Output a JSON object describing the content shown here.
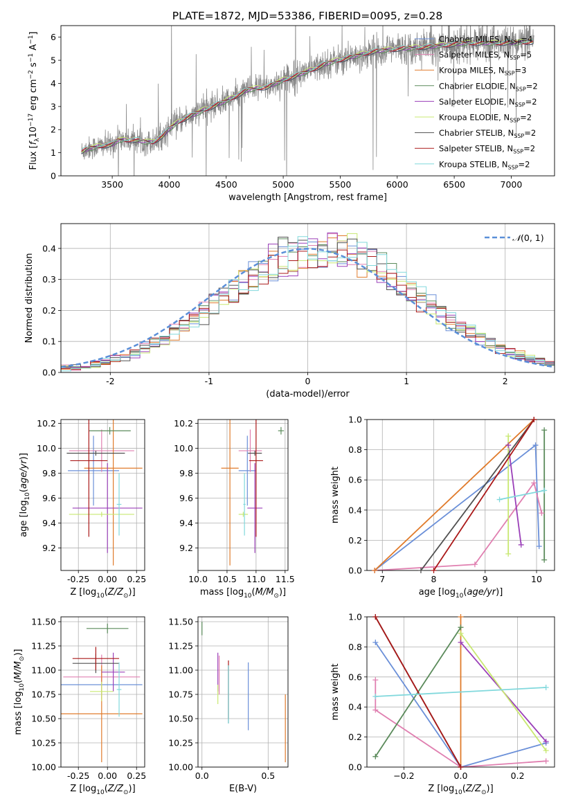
{
  "title": "PLATE=1872, MJD=53386, FIBERID=0095, z=0.28",
  "colors": {
    "chabrier_miles": "#6a8fd8",
    "salpeter_miles": "#e07fb0",
    "kroupa_miles": "#e07a2a",
    "chabrier_elodie": "#5a8a5a",
    "salpeter_elodie": "#9a3fb8",
    "kroupa_elodie": "#c8e870",
    "chabrier_stelib": "#505050",
    "salpeter_stelib": "#aa1818",
    "kroupa_stelib": "#80d8dc",
    "data": "#888888",
    "normal": "#5a8fd8"
  },
  "chart_data": [
    {
      "id": "spectrum",
      "type": "line",
      "xlabel": "wavelength [Angstrom, rest frame]",
      "xlim": [
        3050,
        7380
      ],
      "ylim": [
        0,
        6.5
      ],
      "xticks": [
        3500,
        4000,
        4500,
        5000,
        5500,
        6000,
        6500,
        7000
      ],
      "yticks": [
        0,
        1,
        2,
        3,
        4,
        5,
        6
      ],
      "legend_position": "right",
      "legend": [
        {
          "key": "chabrier_miles",
          "name": "Chabrier MILES",
          "n": "4"
        },
        {
          "key": "salpeter_miles",
          "name": "Salpeter MILES",
          "n": "5"
        },
        {
          "key": "kroupa_miles",
          "name": "Kroupa MILES",
          "n": "3"
        },
        {
          "key": "chabrier_elodie",
          "name": "Chabrier ELODIE",
          "n": "2"
        },
        {
          "key": "salpeter_elodie",
          "name": "Salpeter ELODIE",
          "n": "2"
        },
        {
          "key": "kroupa_elodie",
          "name": "Kroupa ELODIE",
          "n": "2"
        },
        {
          "key": "chabrier_stelib",
          "name": "Chabrier STELIB",
          "n": "2"
        },
        {
          "key": "salpeter_stelib",
          "name": "Salpeter STELIB",
          "n": "2"
        },
        {
          "key": "kroupa_stelib",
          "name": "Kroupa STELIB",
          "n": "2"
        }
      ],
      "data_range": [
        3230,
        7200
      ],
      "model_curve": {
        "x": [
          3230,
          3300,
          3400,
          3500,
          3550,
          3700,
          3850,
          3950,
          4000,
          4100,
          4300,
          4500,
          4700,
          4860,
          5000,
          5200,
          5400,
          5600,
          5800,
          6000,
          6300,
          6600,
          6900,
          7200
        ],
        "y": [
          1.05,
          1.2,
          1.3,
          1.35,
          1.55,
          1.55,
          1.45,
          1.75,
          2.05,
          2.4,
          2.85,
          3.25,
          3.75,
          3.85,
          4.15,
          4.5,
          4.9,
          5.15,
          5.4,
          5.5,
          5.6,
          5.75,
          5.75,
          5.8
        ]
      }
    },
    {
      "id": "residuals",
      "type": "histogram",
      "xlabel": "(data-model)/error",
      "ylabel": "Normed distribution",
      "xlim": [
        -2.5,
        2.5
      ],
      "ylim": [
        0,
        0.48
      ],
      "xticks": [
        -2,
        -1,
        0,
        1,
        2
      ],
      "yticks": [
        0.0,
        0.1,
        0.2,
        0.3,
        0.4
      ],
      "grid": true,
      "legend_position": "top-right",
      "bin_width": 0.1,
      "gaussian": {
        "mean": 0,
        "sigma": 1
      }
    },
    {
      "id": "age_vs_z",
      "type": "errorbar",
      "xlabel": "Z [log10(Z/Zsun)]",
      "ylabel": "age [log10(age/yr)]",
      "xlim": [
        -0.4,
        0.32
      ],
      "ylim": [
        9.02,
        10.23
      ],
      "xticks": [
        -0.25,
        0.0,
        0.25
      ],
      "yticks": [
        9.2,
        9.4,
        9.6,
        9.8,
        10.0,
        10.2
      ],
      "grid": true,
      "points": [
        {
          "key": "chabrier_miles",
          "x": -0.12,
          "xerr": 0.22,
          "y": 9.82,
          "yerr": 0.28
        },
        {
          "key": "salpeter_miles",
          "x": -0.05,
          "xerr": 0.28,
          "y": 9.98,
          "yerr": 0.17
        },
        {
          "key": "kroupa_miles",
          "x": 0.05,
          "xerr": 0.25,
          "y": 9.84,
          "yerr": 0.78
        },
        {
          "key": "chabrier_elodie",
          "x": 0.02,
          "xerr": 0.18,
          "y": 10.14,
          "yerr": 0.03
        },
        {
          "key": "salpeter_elodie",
          "x": 0.0,
          "xerr": 0.3,
          "y": 9.52,
          "yerr": 0.36
        },
        {
          "key": "kroupa_elodie",
          "x": -0.05,
          "xerr": 0.28,
          "y": 9.47,
          "yerr": 0.02
        },
        {
          "key": "chabrier_stelib",
          "x": -0.1,
          "xerr": 0.25,
          "y": 9.96,
          "yerr": 0.02
        },
        {
          "key": "salpeter_stelib",
          "x": -0.16,
          "xerr": 0.16,
          "y": 9.9,
          "yerr": 0.61
        },
        {
          "key": "kroupa_stelib",
          "x": 0.1,
          "xerr": 0.02,
          "y": 9.55,
          "yerr": 0.25
        }
      ]
    },
    {
      "id": "age_vs_mass",
      "type": "errorbar",
      "xlabel": "mass [log10(M/Msun)]",
      "xlim": [
        10.0,
        11.55
      ],
      "ylim": [
        9.02,
        10.23
      ],
      "xticks": [
        10.0,
        10.5,
        11.0,
        11.5
      ],
      "yticks": [
        9.2,
        9.4,
        9.6,
        9.8,
        10.0,
        10.2
      ],
      "grid": true,
      "points": [
        {
          "key": "chabrier_miles",
          "x": 10.85,
          "xerr": 0.15,
          "y": 9.82,
          "yerr": 0.28
        },
        {
          "key": "salpeter_miles",
          "x": 10.9,
          "xerr": 0.2,
          "y": 9.98,
          "yerr": 0.17
        },
        {
          "key": "kroupa_miles",
          "x": 10.55,
          "xerr": 0.15,
          "y": 9.84,
          "yerr": 0.78
        },
        {
          "key": "chabrier_elodie",
          "x": 11.43,
          "xerr": 0.05,
          "y": 10.14,
          "yerr": 0.03
        },
        {
          "key": "salpeter_elodie",
          "x": 10.98,
          "xerr": 0.13,
          "y": 9.52,
          "yerr": 0.36
        },
        {
          "key": "kroupa_elodie",
          "x": 10.78,
          "xerr": 0.08,
          "y": 9.47,
          "yerr": 0.02
        },
        {
          "key": "chabrier_stelib",
          "x": 10.98,
          "xerr": 0.12,
          "y": 9.96,
          "yerr": 0.02
        },
        {
          "key": "salpeter_stelib",
          "x": 11.0,
          "xerr": 0.12,
          "y": 9.9,
          "yerr": 0.61
        },
        {
          "key": "kroupa_stelib",
          "x": 10.8,
          "xerr": 0.02,
          "y": 9.55,
          "yerr": 0.25
        }
      ]
    },
    {
      "id": "weights_vs_age",
      "type": "line",
      "xlabel": "age [log10(age/yr)]",
      "ylabel": "mass weight",
      "xlim": [
        6.7,
        10.35
      ],
      "ylim": [
        0,
        1.0
      ],
      "xticks": [
        7,
        8,
        9,
        10
      ],
      "yticks": [
        0.0,
        0.2,
        0.4,
        0.6,
        0.8,
        1.0
      ],
      "grid": true,
      "series": [
        {
          "key": "chabrier_miles",
          "x": [
            6.85,
            9.98,
            10.05
          ],
          "y": [
            0.0,
            0.83,
            0.16
          ]
        },
        {
          "key": "salpeter_miles",
          "x": [
            6.85,
            8.8,
            9.95,
            10.1
          ],
          "y": [
            0.0,
            0.04,
            0.58,
            0.38
          ]
        },
        {
          "key": "kroupa_miles",
          "x": [
            6.85,
            9.95
          ],
          "y": [
            0.0,
            1.0
          ]
        },
        {
          "key": "chabrier_elodie",
          "x": [
            10.15,
            10.15
          ],
          "y": [
            0.93,
            0.07
          ]
        },
        {
          "key": "salpeter_elodie",
          "x": [
            9.45,
            9.7
          ],
          "y": [
            0.83,
            0.17
          ]
        },
        {
          "key": "kroupa_elodie",
          "x": [
            9.45,
            9.45
          ],
          "y": [
            0.89,
            0.11
          ]
        },
        {
          "key": "chabrier_stelib",
          "x": [
            7.75,
            9.95
          ],
          "y": [
            0.0,
            1.0
          ]
        },
        {
          "key": "salpeter_stelib",
          "x": [
            8.0,
            9.95
          ],
          "y": [
            0.0,
            1.0
          ]
        },
        {
          "key": "kroupa_stelib",
          "x": [
            9.28,
            10.15
          ],
          "y": [
            0.47,
            0.53
          ]
        }
      ]
    },
    {
      "id": "mass_vs_z",
      "type": "errorbar",
      "xlabel": "Z [log10(Z/Zsun)]",
      "ylabel": "mass [log10(M/Msun)]",
      "xlim": [
        -0.4,
        0.32
      ],
      "ylim": [
        10.0,
        11.55
      ],
      "xticks": [
        -0.25,
        0.0,
        0.25
      ],
      "yticks": [
        10.0,
        10.25,
        10.5,
        10.75,
        11.0,
        11.25,
        11.5
      ],
      "grid": true,
      "points": [
        {
          "key": "chabrier_miles",
          "x": -0.05,
          "xerr": 0.35,
          "y": 10.85,
          "yerr": 0.15
        },
        {
          "key": "salpeter_miles",
          "x": -0.05,
          "xerr": 0.33,
          "y": 10.93,
          "yerr": 0.23
        },
        {
          "key": "kroupa_miles",
          "x": -0.05,
          "xerr": 0.35,
          "y": 10.55,
          "yerr": 0.5
        },
        {
          "key": "chabrier_elodie",
          "x": 0.0,
          "xerr": 0.18,
          "y": 11.43,
          "yerr": 0.05
        },
        {
          "key": "salpeter_elodie",
          "x": 0.05,
          "xerr": 0.1,
          "y": 10.98,
          "yerr": 0.2
        },
        {
          "key": "kroupa_elodie",
          "x": -0.05,
          "xerr": 0.1,
          "y": 10.78,
          "yerr": 0.1
        },
        {
          "key": "chabrier_stelib",
          "x": -0.1,
          "xerr": 0.2,
          "y": 11.07,
          "yerr": 0.1
        },
        {
          "key": "salpeter_stelib",
          "x": -0.1,
          "xerr": 0.2,
          "y": 11.12,
          "yerr": 0.12
        },
        {
          "key": "kroupa_stelib",
          "x": 0.1,
          "xerr": 0.02,
          "y": 10.8,
          "yerr": 0.28
        }
      ]
    },
    {
      "id": "mass_vs_ebv",
      "type": "errorbar",
      "xlabel": "E(B-V)",
      "xlim": [
        -0.03,
        0.65
      ],
      "ylim": [
        10.0,
        11.55
      ],
      "xticks": [
        0.0,
        0.5
      ],
      "yticks": [
        10.0,
        10.25,
        10.5,
        10.75,
        11.0,
        11.25,
        11.5
      ],
      "grid": true,
      "points": [
        {
          "key": "chabrier_miles",
          "x": 0.35,
          "xerr": 0,
          "y": 10.73,
          "yerr": 0.35
        },
        {
          "key": "salpeter_miles",
          "x": 0.13,
          "xerr": 0,
          "y": 10.95,
          "yerr": 0.2
        },
        {
          "key": "kroupa_miles",
          "x": 0.63,
          "xerr": 0,
          "y": 10.4,
          "yerr": 0.35
        },
        {
          "key": "chabrier_elodie",
          "x": 0.0,
          "xerr": 0,
          "y": 11.43,
          "yerr": 0.07
        },
        {
          "key": "salpeter_elodie",
          "x": 0.12,
          "xerr": 0,
          "y": 10.98,
          "yerr": 0.2
        },
        {
          "key": "kroupa_elodie",
          "x": 0.12,
          "xerr": 0,
          "y": 10.75,
          "yerr": 0.1
        },
        {
          "key": "chabrier_stelib",
          "x": 0.2,
          "xerr": 0,
          "y": 10.75,
          "yerr": 0.3
        },
        {
          "key": "salpeter_stelib",
          "x": 0.2,
          "xerr": 0,
          "y": 10.8,
          "yerr": 0.3
        },
        {
          "key": "kroupa_stelib",
          "x": 0.2,
          "xerr": 0,
          "y": 10.75,
          "yerr": 0.3
        }
      ]
    },
    {
      "id": "weights_vs_z",
      "type": "line",
      "xlabel": "Z [log10(Z/Zsun)]",
      "ylabel": "mass weight",
      "xlim": [
        -0.33,
        0.33
      ],
      "ylim": [
        0,
        1.0
      ],
      "xticks": [
        -0.2,
        0.0,
        0.2
      ],
      "yticks": [
        0.0,
        0.2,
        0.4,
        0.6,
        0.8,
        1.0
      ],
      "grid": true,
      "series": [
        {
          "key": "chabrier_miles",
          "x": [
            -0.3,
            0.0,
            0.3
          ],
          "y": [
            0.83,
            0.0,
            0.16
          ]
        },
        {
          "key": "salpeter_miles",
          "x": [
            -0.3,
            -0.3,
            0.0,
            0.3
          ],
          "y": [
            0.58,
            0.38,
            0.0,
            0.04
          ]
        },
        {
          "key": "kroupa_miles",
          "x": [
            0.0,
            0.0
          ],
          "y": [
            1.0,
            0.0
          ]
        },
        {
          "key": "chabrier_elodie",
          "x": [
            -0.3,
            0.0
          ],
          "y": [
            0.07,
            0.93
          ]
        },
        {
          "key": "salpeter_elodie",
          "x": [
            0.0,
            0.3
          ],
          "y": [
            0.83,
            0.17
          ]
        },
        {
          "key": "kroupa_elodie",
          "x": [
            0.0,
            0.3
          ],
          "y": [
            0.89,
            0.11
          ]
        },
        {
          "key": "chabrier_stelib",
          "x": [
            -0.3,
            0.0
          ],
          "y": [
            1.0,
            0.0
          ]
        },
        {
          "key": "salpeter_stelib",
          "x": [
            -0.3,
            0.0
          ],
          "y": [
            1.0,
            0.0
          ]
        },
        {
          "key": "kroupa_stelib",
          "x": [
            -0.3,
            0.3
          ],
          "y": [
            0.47,
            0.53
          ]
        }
      ]
    }
  ]
}
